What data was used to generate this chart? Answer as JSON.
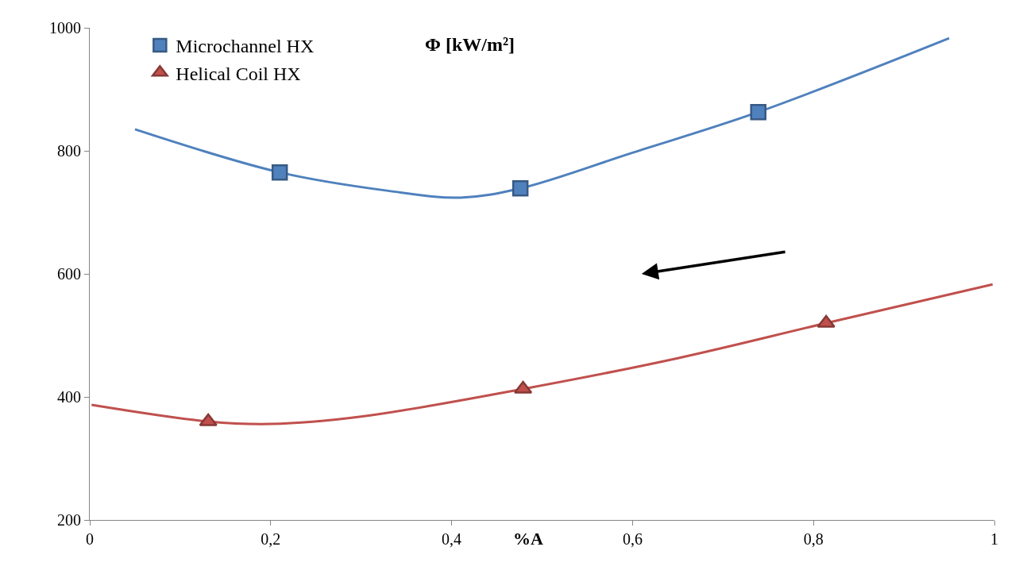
{
  "chart_data": {
    "type": "line",
    "title": "Φ [kW/m²]",
    "xlabel": "%A",
    "xlim": [
      0,
      1
    ],
    "xticks": [
      0,
      {
        "value": 0.2,
        "label": "0,2"
      },
      {
        "value": 0.4,
        "label": "0,4"
      },
      {
        "value": 0.6,
        "label": "0,6"
      },
      {
        "value": 0.8,
        "label": "0,8"
      },
      1
    ],
    "ylim": [
      200,
      1000
    ],
    "yticks": [
      200,
      400,
      600,
      800,
      1000
    ],
    "legend": "top left",
    "series": [
      {
        "marker": "none",
        "color": "#4f81bd",
        "x": [
          0.05,
          0.21,
          0.33,
          0.41,
          0.476,
          0.6,
          0.739,
          0.95
        ],
        "values": [
          835,
          765,
          735,
          724,
          739,
          797,
          863,
          983
        ]
      },
      {
        "marker": "none",
        "color": "#c0504d",
        "x": [
          0.002,
          0.131,
          0.2,
          0.3,
          0.479,
          0.65,
          0.814,
          0.998
        ],
        "values": [
          387,
          360,
          356,
          368,
          413,
          463,
          520,
          583
        ]
      },
      {
        "type": "scatter",
        "name": "Microchannel HX",
        "marker": "square",
        "color": "#4f81bd",
        "x": [
          0.21,
          0.476,
          0.739
        ],
        "values": [
          765,
          739,
          863
        ]
      },
      {
        "type": "scatter",
        "name": "Helical Coil HX",
        "marker": "triangle",
        "color": "#c0504d",
        "x": [
          0.131,
          0.479,
          0.814
        ],
        "values": [
          360,
          413,
          520
        ]
      }
    ]
  }
}
